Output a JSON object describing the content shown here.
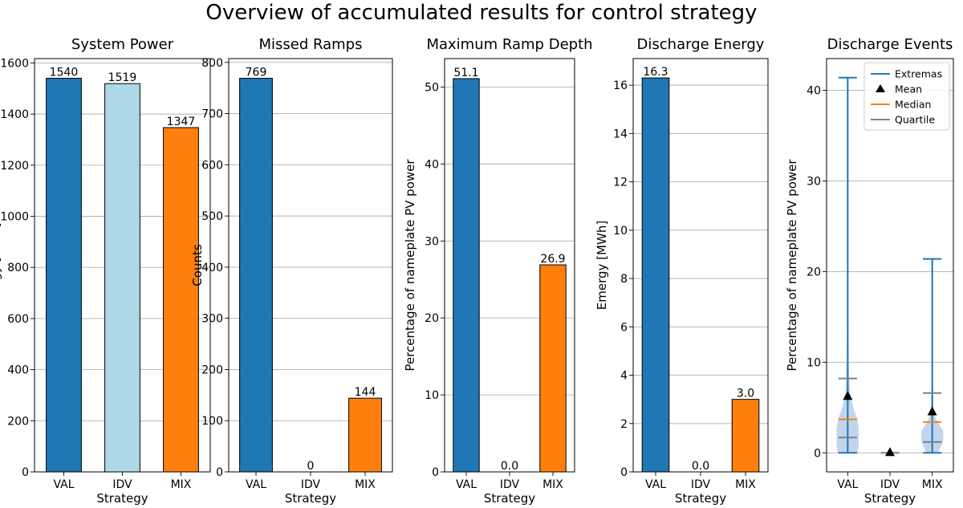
{
  "figure_title": "Overview of accumulated results for control strategy",
  "colors": {
    "val": "#1f77b4",
    "idv": "#add8e6",
    "mix": "#ff7f0e",
    "grid": "#b0b0b0",
    "violin": "#aec7e8",
    "median": "#ff7f0e",
    "quartile": "#808080"
  },
  "chart_data": [
    {
      "type": "bar",
      "title": "System Power",
      "xlabel": "Strategy",
      "ylabel": "Energy [MWh]",
      "categories": [
        "VAL",
        "IDV",
        "MIX"
      ],
      "values": [
        1540,
        1519,
        1347
      ],
      "value_labels": [
        "1540",
        "1519",
        "1347"
      ],
      "ylim": [
        0,
        1617
      ],
      "yticks": [
        0,
        200,
        400,
        600,
        800,
        1000,
        1200,
        1400,
        1600
      ],
      "grid": true
    },
    {
      "type": "bar",
      "title": "Missed Ramps",
      "xlabel": "Strategy",
      "ylabel": "Counts",
      "categories": [
        "VAL",
        "IDV",
        "MIX"
      ],
      "values": [
        769,
        0,
        144
      ],
      "value_labels": [
        "769",
        "0",
        "144"
      ],
      "ylim": [
        0,
        807.5
      ],
      "yticks": [
        0,
        100,
        200,
        300,
        400,
        500,
        600,
        700,
        800
      ],
      "grid": true
    },
    {
      "type": "bar",
      "title": "Maximum Ramp Depth",
      "xlabel": "Strategy",
      "ylabel": "Percentage of nameplate PV power",
      "categories": [
        "VAL",
        "IDV",
        "MIX"
      ],
      "values": [
        51.1,
        0.0,
        26.9
      ],
      "value_labels": [
        "51.1",
        "0.0",
        "26.9"
      ],
      "ylim": [
        0,
        53.7
      ],
      "yticks": [
        0,
        10,
        20,
        30,
        40,
        50
      ],
      "grid": true
    },
    {
      "type": "bar",
      "title": "Discharge Energy",
      "xlabel": "Strategy",
      "ylabel": "Emergy [MWh]",
      "categories": [
        "VAL",
        "IDV",
        "MIX"
      ],
      "values": [
        16.3,
        0.0,
        3.0
      ],
      "value_labels": [
        "16.3",
        "0.0",
        "3.0"
      ],
      "ylim": [
        0,
        17.1
      ],
      "yticks": [
        0,
        2,
        4,
        6,
        8,
        10,
        12,
        14,
        16
      ],
      "grid": true
    },
    {
      "type": "violin",
      "title": "Discharge Events",
      "xlabel": "Strategy",
      "ylabel": "Percentage of nameplate PV power",
      "categories": [
        "VAL",
        "IDV",
        "MIX"
      ],
      "ylim": [
        -2.1,
        43.5
      ],
      "yticks": [
        0,
        10,
        20,
        30,
        40
      ],
      "grid": true,
      "legend": {
        "position": "top-right",
        "entries": [
          "Extremas",
          "Mean",
          "Median",
          "Quartile"
        ]
      },
      "stats": [
        {
          "min": 0.0,
          "max": 41.4,
          "mean": 6.2,
          "median": 3.7,
          "q1": 1.7,
          "q3": 8.2
        },
        {
          "min": 0.0,
          "max": 0.0,
          "mean": 0.0,
          "median": 0.0,
          "q1": 0.0,
          "q3": 0.0
        },
        {
          "min": 0.0,
          "max": 21.4,
          "mean": 4.5,
          "median": 3.4,
          "q1": 1.2,
          "q3": 6.6
        }
      ]
    }
  ]
}
